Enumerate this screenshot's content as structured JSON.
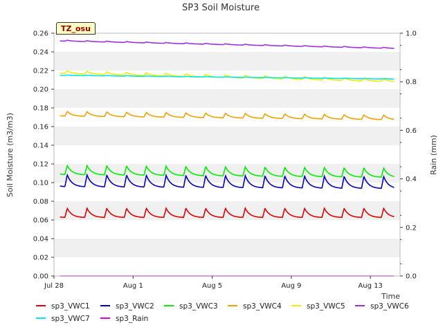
{
  "chart_data": {
    "type": "line",
    "title": "SP3 Soil Moisture",
    "xlabel": "Time",
    "ylabel": "Soil Moisture (m3/m3)",
    "y2label": "Rain (mm)",
    "badge": "TZ_osu",
    "ylim": [
      0.0,
      0.26
    ],
    "y2lim": [
      0.0,
      1.0
    ],
    "x_range_days": [
      0,
      17.5
    ],
    "yticks": [
      "0.00",
      "0.02",
      "0.04",
      "0.06",
      "0.08",
      "0.10",
      "0.12",
      "0.14",
      "0.16",
      "0.18",
      "0.20",
      "0.22",
      "0.24",
      "0.26"
    ],
    "y2ticks": [
      "0.0",
      "0.2",
      "0.4",
      "0.6",
      "0.8",
      "1.0"
    ],
    "xticks": [
      {
        "label": "Jul 28",
        "day": 0
      },
      {
        "label": "Aug 1",
        "day": 4
      },
      {
        "label": "Aug 5",
        "day": 8
      },
      {
        "label": "Aug 9",
        "day": 12
      },
      {
        "label": "Aug 13",
        "day": 16
      }
    ],
    "series": [
      {
        "name": "sp3_VWC1",
        "color": "#e00000",
        "start": 0.066,
        "end": 0.066,
        "amp": 0.01
      },
      {
        "name": "sp3_VWC2",
        "color": "#0000c0",
        "start": 0.1,
        "end": 0.098,
        "amp": 0.013
      },
      {
        "name": "sp3_VWC3",
        "color": "#00ee00",
        "start": 0.112,
        "end": 0.109,
        "amp": 0.01
      },
      {
        "name": "sp3_VWC4",
        "color": "#f0a000",
        "start": 0.173,
        "end": 0.169,
        "amp": 0.005
      },
      {
        "name": "sp3_VWC5",
        "color": "#eeee00",
        "start": 0.218,
        "end": 0.209,
        "amp": 0.003
      },
      {
        "name": "sp3_VWC6",
        "color": "#9a30e0",
        "start": 0.252,
        "end": 0.244,
        "amp": 0.001
      },
      {
        "name": "sp3_VWC7",
        "color": "#00e8e8",
        "start": 0.215,
        "end": 0.211,
        "amp": 0.0005
      },
      {
        "name": "sp3_Rain",
        "color": "#e000e0",
        "start": 0.0,
        "end": 0.0,
        "amp": 0.0,
        "axis": "right"
      }
    ]
  }
}
